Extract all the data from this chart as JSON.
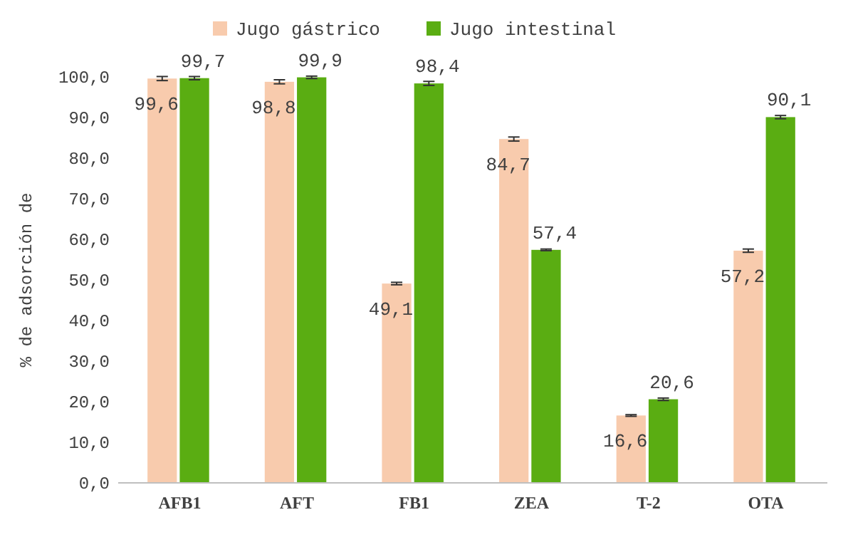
{
  "chart_data": {
    "type": "bar",
    "ylabel": "% de adsorción de",
    "categories": [
      "AFB1",
      "AFT",
      "FB1",
      "ZEA",
      "T-2",
      "OTA"
    ],
    "series": [
      {
        "name": "Jugo gástrico",
        "color": "#f8cbad",
        "values": [
          99.6,
          98.8,
          49.1,
          84.7,
          16.6,
          57.2
        ],
        "value_labels": [
          "99,6",
          "98,8",
          "49,1",
          "84,7",
          "16,6",
          "57,2"
        ],
        "errors": [
          0.5,
          0.5,
          0.3,
          0.5,
          0.2,
          0.4
        ]
      },
      {
        "name": "Jugo intestinal",
        "color": "#5aad12",
        "values": [
          99.7,
          99.9,
          98.4,
          57.4,
          20.6,
          90.1
        ],
        "value_labels": [
          "99,7",
          "99,9",
          "98,4",
          "57,4",
          "20,6",
          "90,1"
        ],
        "errors": [
          0.4,
          0.3,
          0.5,
          0.2,
          0.3,
          0.4
        ]
      }
    ],
    "ylim": [
      0,
      100
    ],
    "yticks": [
      {
        "value": 0,
        "label": "0,0"
      },
      {
        "value": 10,
        "label": "10,0"
      },
      {
        "value": 20,
        "label": "20,0"
      },
      {
        "value": 30,
        "label": "30,0"
      },
      {
        "value": 40,
        "label": "40,0"
      },
      {
        "value": 50,
        "label": "50,0"
      },
      {
        "value": 60,
        "label": "60,0"
      },
      {
        "value": 70,
        "label": "70,0"
      },
      {
        "value": 80,
        "label": "80,0"
      },
      {
        "value": 90,
        "label": "90,0"
      },
      {
        "value": 100,
        "label": "100,0"
      }
    ],
    "grid": false,
    "legend": "top"
  }
}
